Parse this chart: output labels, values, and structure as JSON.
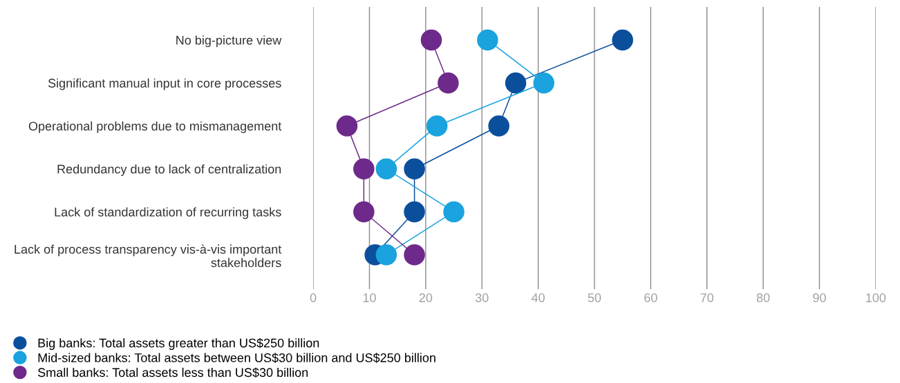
{
  "chart_data": {
    "type": "line",
    "orientation": "horizontal",
    "categories": [
      "No big-picture view",
      "Significant manual input in core processes",
      "Operational problems due to mismanagement",
      "Redundancy due to lack of centralization",
      "Lack of standardization of recurring tasks",
      "Lack of process transparency vis-à-vis important stakeholders"
    ],
    "series": [
      {
        "name": "Big banks: Total assets greater than US$250 billion",
        "color": "#0b4f9c",
        "values": [
          55,
          36,
          33,
          18,
          18,
          11
        ]
      },
      {
        "name": "Mid-sized banks: Total assets between US$30 billion and US$250 billion",
        "color": "#1aa3de",
        "values": [
          31,
          41,
          22,
          13,
          25,
          13
        ]
      },
      {
        "name": "Small banks: Total assets less than US$30 billion",
        "color": "#6d2a8a",
        "values": [
          21,
          24,
          6,
          9,
          9,
          18
        ]
      }
    ],
    "xlim": [
      0,
      100
    ],
    "xticks": [
      0,
      10,
      20,
      30,
      40,
      50,
      60,
      70,
      80,
      90,
      100
    ],
    "grid": "x",
    "legend": "bottom left",
    "marker": "circle",
    "line_style": "solid"
  }
}
